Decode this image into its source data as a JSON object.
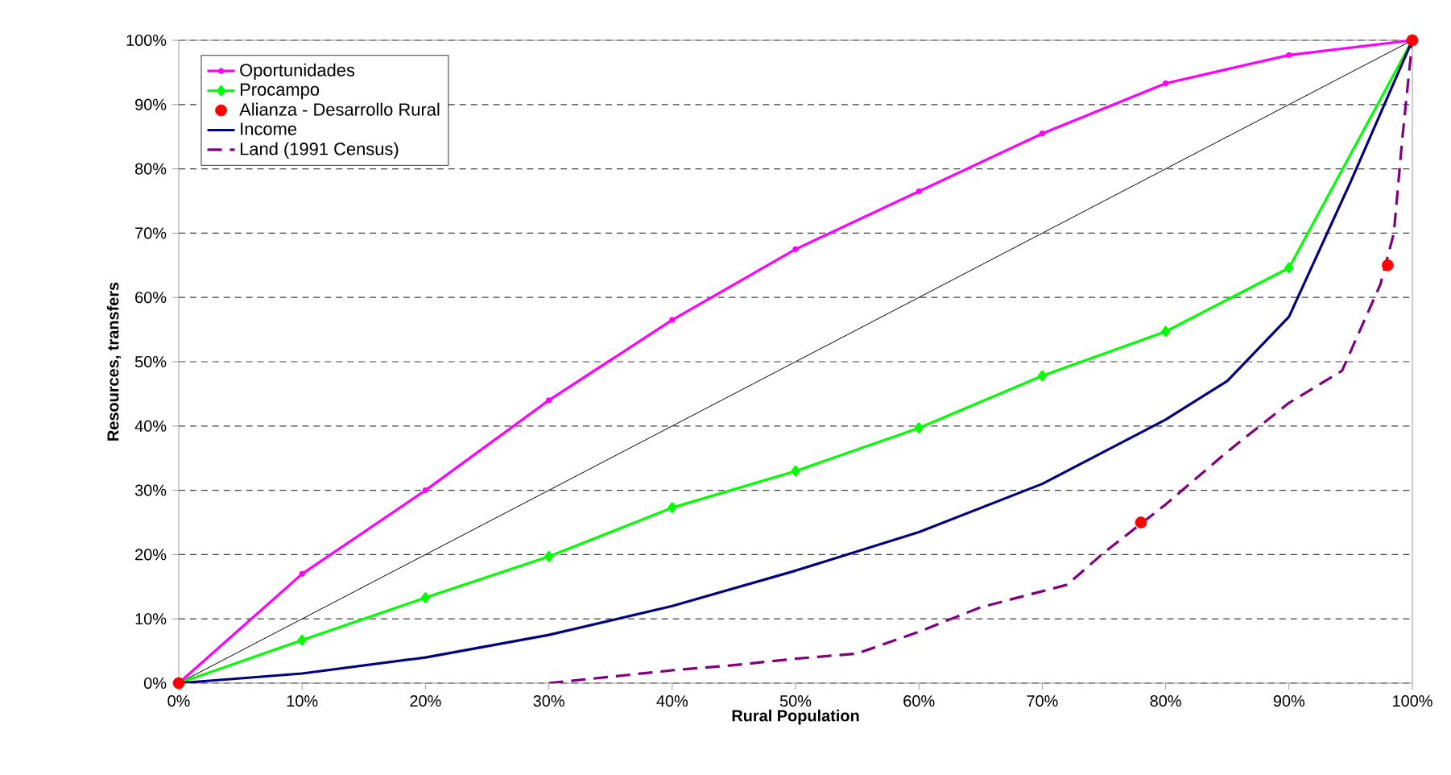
{
  "chart_data": {
    "type": "line",
    "xlabel": "Rural Population",
    "ylabel": "Resources, transfers",
    "x": [
      0,
      10,
      20,
      30,
      40,
      50,
      60,
      70,
      80,
      90,
      100
    ],
    "xlim": [
      0,
      100
    ],
    "ylim": [
      0,
      100
    ],
    "xticks": [
      {
        "value": 0,
        "label": "0%"
      },
      {
        "value": 10,
        "label": "10%"
      },
      {
        "value": 20,
        "label": "20%"
      },
      {
        "value": 30,
        "label": "30%"
      },
      {
        "value": 40,
        "label": "40%"
      },
      {
        "value": 50,
        "label": "50%"
      },
      {
        "value": 60,
        "label": "60%"
      },
      {
        "value": 70,
        "label": "70%"
      },
      {
        "value": 80,
        "label": "80%"
      },
      {
        "value": 90,
        "label": "90%"
      },
      {
        "value": 100,
        "label": "100%"
      }
    ],
    "yticks": [
      {
        "value": 0,
        "label": "0%"
      },
      {
        "value": 10,
        "label": "10%"
      },
      {
        "value": 20,
        "label": "20%"
      },
      {
        "value": 30,
        "label": "30%"
      },
      {
        "value": 40,
        "label": "40%"
      },
      {
        "value": 50,
        "label": "50%"
      },
      {
        "value": 60,
        "label": "60%"
      },
      {
        "value": 70,
        "label": "70%"
      },
      {
        "value": 80,
        "label": "80%"
      },
      {
        "value": 90,
        "label": "90%"
      },
      {
        "value": 100,
        "label": "100%"
      }
    ],
    "grid": "y",
    "legend": "top left",
    "series": [
      {
        "name": "Oportunidades",
        "color": "#ff00ff",
        "marker": "circle",
        "values": [
          0,
          17,
          30,
          44,
          56.5,
          67.5,
          76.5,
          85.5,
          93.3,
          97.7,
          100
        ]
      },
      {
        "name": "Procampo",
        "color": "#00ff00",
        "marker": "diamond",
        "values": [
          0,
          6.7,
          13.3,
          19.7,
          27.3,
          33,
          39.7,
          47.8,
          54.7,
          64.6,
          100
        ]
      },
      {
        "name": "Alianza - Desarrollo Rural",
        "type": "scatter",
        "color": "#ff0000",
        "marker": "circle",
        "x": [
          0,
          78,
          98,
          100
        ],
        "values": [
          0,
          25,
          65,
          100
        ]
      },
      {
        "name": "Income",
        "color": "#000080",
        "marker": "none",
        "x": [
          0,
          10,
          20,
          30,
          40,
          50,
          60,
          70,
          80,
          85,
          90,
          95,
          100
        ],
        "values": [
          0,
          1.5,
          4,
          7.5,
          12,
          17.5,
          23.5,
          31,
          41,
          47,
          57,
          78,
          100
        ]
      },
      {
        "name": "Land (1991 Census)",
        "color": "#800080",
        "marker": "none",
        "line_style": "dashed",
        "x": [
          30,
          35,
          40,
          45,
          50,
          55,
          60,
          65,
          70,
          72,
          75,
          80,
          85,
          90,
          94.3,
          97.4,
          98.5,
          99.2,
          100
        ],
        "values": [
          0,
          1,
          2,
          2.8,
          3.8,
          4.6,
          8,
          11.8,
          14.3,
          15.3,
          20.3,
          27.8,
          36,
          43.6,
          48.6,
          62,
          70,
          85,
          100
        ]
      },
      {
        "color": "#000000",
        "marker": "none",
        "x": [
          0,
          100
        ],
        "values": [
          0,
          100
        ]
      }
    ]
  }
}
